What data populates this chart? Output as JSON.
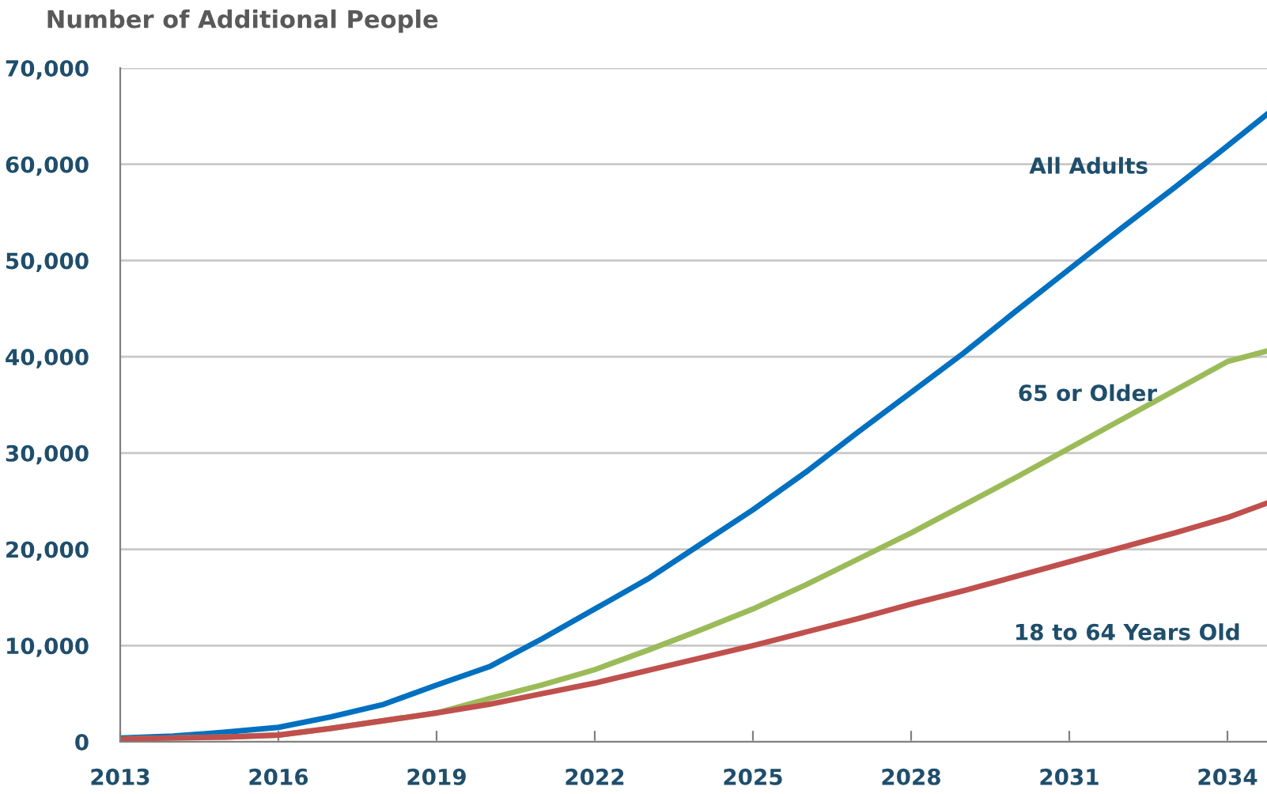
{
  "chart_data": {
    "type": "line",
    "title": "Number of Additional People",
    "x": [
      2013,
      2014,
      2015,
      2016,
      2017,
      2018,
      2019,
      2020,
      2021,
      2022,
      2023,
      2024,
      2025,
      2026,
      2027,
      2028,
      2029,
      2030,
      2031,
      2032,
      2033,
      2034,
      2034.75
    ],
    "series": [
      {
        "name": "All Adults",
        "color": "#0070c0",
        "values": [
          400,
          600,
          1000,
          1500,
          2600,
          3900,
          5900,
          7800,
          10700,
          13800,
          16900,
          20500,
          24100,
          28000,
          32200,
          36300,
          40400,
          44800,
          49100,
          53400,
          57600,
          61900,
          65200
        ]
      },
      {
        "name": "65 or Older",
        "color": "#9bbb59",
        "values": [
          300,
          400,
          500,
          700,
          1400,
          2200,
          3000,
          4500,
          5900,
          7500,
          9500,
          11600,
          13800,
          16300,
          19000,
          21700,
          24600,
          27500,
          30500,
          33500,
          36500,
          39500,
          40600
        ]
      },
      {
        "name": "18 to 64 Years Old",
        "color": "#c0504d",
        "values": [
          300,
          400,
          500,
          700,
          1400,
          2200,
          3000,
          3900,
          5000,
          6100,
          7400,
          8700,
          10000,
          11400,
          12800,
          14300,
          15700,
          17200,
          18700,
          20200,
          21700,
          23300,
          24800
        ]
      }
    ],
    "xlim": [
      2013,
      2034.75
    ],
    "xticks": [
      2013,
      2016,
      2019,
      2022,
      2025,
      2028,
      2031,
      2034
    ],
    "ylim": [
      0,
      70000
    ],
    "yticks": [
      {
        "value": 0,
        "label": "0"
      },
      {
        "value": 10000,
        "label": "10,000"
      },
      {
        "value": 20000,
        "label": "20,000"
      },
      {
        "value": 30000,
        "label": "30,000"
      },
      {
        "value": 40000,
        "label": "40,000"
      },
      {
        "value": 50000,
        "label": "50,000"
      },
      {
        "value": 60000,
        "label": "60,000"
      },
      {
        "value": 70000,
        "label": "70,000"
      }
    ],
    "grid": "y",
    "line_style": "solid",
    "marker": "none",
    "legend": false
  }
}
